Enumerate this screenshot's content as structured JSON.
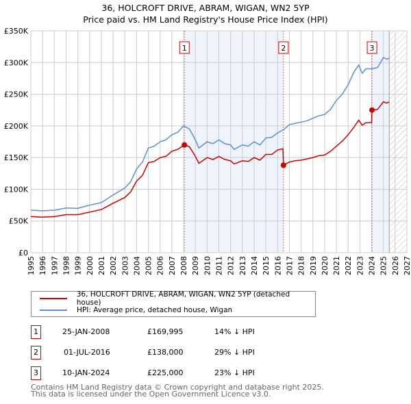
{
  "chart_data": {
    "type": "line",
    "title": "36, HOLCROFT DRIVE, ABRAM, WIGAN, WN2 5YP",
    "subtitle": "Price paid vs. HM Land Registry's House Price Index (HPI)",
    "xlim": [
      1995,
      2027
    ],
    "ylim": [
      0,
      350000
    ],
    "x_ticks": [
      "1995",
      "1996",
      "1997",
      "1998",
      "1999",
      "2000",
      "2001",
      "2002",
      "2003",
      "2004",
      "2005",
      "2006",
      "2007",
      "2008",
      "2009",
      "2010",
      "2011",
      "2012",
      "2013",
      "2014",
      "2015",
      "2016",
      "2017",
      "2018",
      "2019",
      "2020",
      "2021",
      "2022",
      "2023",
      "2024",
      "2025",
      "2026",
      "2027"
    ],
    "y_ticks": [
      {
        "v": 0,
        "l": "£0"
      },
      {
        "v": 50000,
        "l": "£50K"
      },
      {
        "v": 100000,
        "l": "£100K"
      },
      {
        "v": 150000,
        "l": "£150K"
      },
      {
        "v": 200000,
        "l": "£200K"
      },
      {
        "v": 250000,
        "l": "£250K"
      },
      {
        "v": 300000,
        "l": "£300K"
      },
      {
        "v": 350000,
        "l": "£350K"
      }
    ],
    "grid": true,
    "data_end": 2025.5,
    "series": [
      {
        "name": "36, HOLCROFT DRIVE, ABRAM, WIGAN, WN2 5YP (detached house)",
        "color": "#cc0000",
        "x": [
          1995,
          1996,
          1997,
          1998,
          1999,
          2000,
          2001,
          2002,
          2003,
          2003.5,
          2004,
          2004.5,
          2005,
          2005.5,
          2006,
          2006.5,
          2007,
          2007.5,
          2008.07,
          2008.5,
          2009,
          2009.3,
          2010,
          2010.5,
          2011,
          2011.5,
          2012,
          2012.3,
          2013,
          2013.5,
          2014,
          2014.5,
          2015,
          2015.5,
          2016,
          2016.45,
          2016.5,
          2017,
          2017.5,
          2018,
          2018.5,
          2019,
          2019.5,
          2020,
          2020.5,
          2021,
          2021.5,
          2022,
          2022.5,
          2022.9,
          2023.2,
          2023.5,
          2024.0,
          2024.03,
          2024.5,
          2025,
          2025.3,
          2025.5
        ],
        "y": [
          57000,
          56000,
          57000,
          60000,
          60000,
          64000,
          68000,
          78000,
          87000,
          96000,
          113000,
          122000,
          142000,
          144000,
          150000,
          152000,
          160000,
          163000,
          169995,
          167000,
          152000,
          141000,
          150000,
          147000,
          152000,
          147000,
          145000,
          140000,
          145000,
          144000,
          150000,
          146000,
          155000,
          155000,
          162000,
          164000,
          138000,
          143000,
          145000,
          146000,
          148000,
          150000,
          153000,
          154000,
          160000,
          168000,
          176000,
          186000,
          198000,
          209000,
          201000,
          205000,
          205000,
          225000,
          226000,
          238000,
          236000,
          238000
        ]
      },
      {
        "name": "HPI: Average price, detached house, Wigan",
        "color": "#5b8fd4",
        "x": [
          1995,
          1996,
          1997,
          1998,
          1999,
          2000,
          2001,
          2002,
          2003,
          2003.5,
          2004,
          2004.5,
          2005,
          2005.5,
          2006,
          2006.5,
          2007,
          2007.5,
          2008,
          2008.5,
          2009,
          2009.3,
          2010,
          2010.5,
          2011,
          2011.5,
          2012,
          2012.3,
          2013,
          2013.5,
          2014,
          2014.5,
          2015,
          2015.5,
          2016,
          2016.5,
          2017,
          2017.5,
          2018,
          2018.5,
          2019,
          2019.5,
          2020,
          2020.5,
          2021,
          2021.5,
          2022,
          2022.5,
          2022.9,
          2023.2,
          2023.5,
          2024,
          2024.5,
          2025,
          2025.3,
          2025.5
        ],
        "y": [
          67000,
          66000,
          67000,
          70500,
          70000,
          75000,
          79000,
          91000,
          102000,
          112000,
          132000,
          143000,
          165000,
          168000,
          175000,
          178000,
          186000,
          190000,
          200000,
          195000,
          178000,
          165000,
          175000,
          172000,
          178000,
          172000,
          170000,
          163000,
          170000,
          168000,
          175000,
          170000,
          181000,
          182000,
          189000,
          194000,
          202000,
          204000,
          206000,
          208000,
          212000,
          216000,
          218000,
          226000,
          240000,
          250000,
          265000,
          285000,
          296000,
          283000,
          290000,
          290000,
          292000,
          308000,
          305000,
          307000
        ]
      }
    ],
    "sales": [
      {
        "n": "1",
        "x": 2008.07,
        "date": "25-JAN-2008",
        "price": "£169,995",
        "value": 169995,
        "delta": "14% ↓ HPI"
      },
      {
        "n": "2",
        "x": 2016.5,
        "date": "01-JUL-2016",
        "price": "£138,000",
        "value": 138000,
        "delta": "29% ↓ HPI"
      },
      {
        "n": "3",
        "x": 2024.03,
        "date": "10-JAN-2024",
        "price": "£225,000",
        "value": 225000,
        "delta": "23% ↓ HPI"
      }
    ]
  },
  "footer": {
    "line1": "Contains HM Land Registry data © Crown copyright and database right 2025.",
    "line2": "This data is licensed under the Open Government Licence v3.0."
  }
}
